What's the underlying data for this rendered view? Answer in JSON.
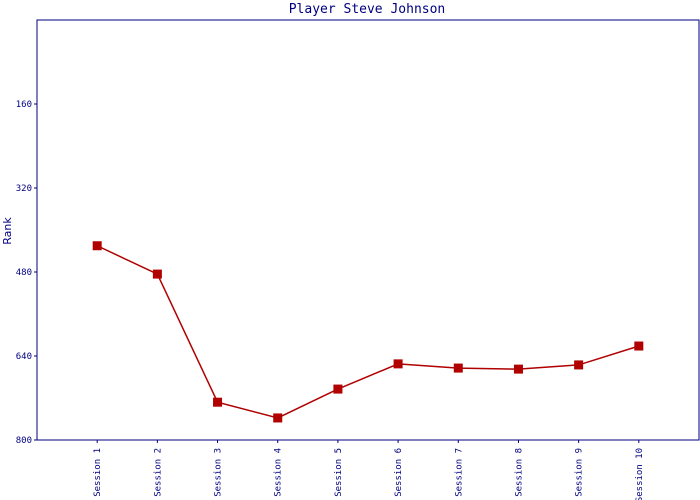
{
  "chart_data": {
    "type": "line",
    "title": "Player Steve Johnson",
    "y_label": "Rank",
    "categories": [
      "Session 1",
      "Session 2",
      "Session 3",
      "Session 4",
      "Session 5",
      "Session 6",
      "Session 7",
      "Session 8",
      "Session 9",
      "Session 10"
    ],
    "series": [
      {
        "name": "Rank",
        "color": "#b00000",
        "values": [
          430,
          484,
          728,
          758,
          703,
          655,
          663,
          665,
          657,
          621
        ]
      }
    ],
    "ylim": [
      0,
      800
    ],
    "yticks": [
      160,
      320,
      480,
      640,
      800
    ],
    "y_inverted": true,
    "grid": false
  }
}
